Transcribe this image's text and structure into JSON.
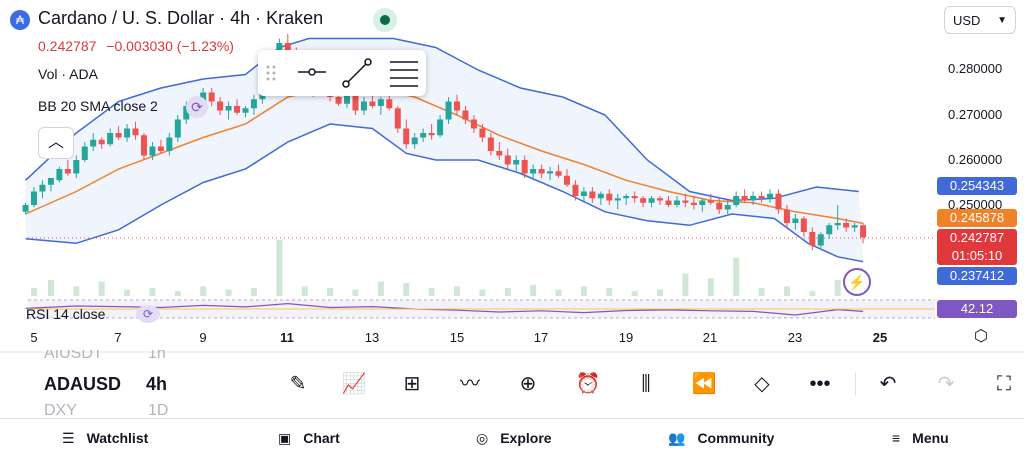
{
  "header": {
    "title": "Cardano / U. S. Dollar · 4h · Kraken",
    "logo_glyph": "₳",
    "price": "0.242787",
    "change": "−0.003030 (−1.23%)",
    "volume_label": "Vol · ADA",
    "bb_label": "BB 20 SMA close 2"
  },
  "currency": {
    "selected": "USD"
  },
  "y_axis": {
    "ticks": [
      "0.280000",
      "0.270000",
      "0.260000",
      "0.250000"
    ],
    "tags": {
      "upper_band": "0.254343",
      "basis": "0.245878",
      "price": "0.242787",
      "countdown": "01:05:10",
      "lower_band": "0.237412",
      "rsi": "42.12"
    }
  },
  "x_axis": {
    "ticks": [
      "5",
      "7",
      "9",
      "11",
      "13",
      "15",
      "17",
      "19",
      "21",
      "23",
      "25"
    ]
  },
  "rsi": {
    "label": "RSI 14 close"
  },
  "toolbar": {
    "symbols": {
      "prev": "AIUSDT",
      "current": "ADAUSD",
      "next": "DXY"
    },
    "intervals": {
      "prev": "1h",
      "current": "4h",
      "next": "1D"
    }
  },
  "nav": {
    "watchlist": "Watchlist",
    "chart": "Chart",
    "explore": "Explore",
    "community": "Community",
    "menu": "Menu"
  },
  "colors": {
    "up": "#26a69a",
    "down": "#ef5350",
    "band": "#3f6ad8",
    "basis": "#f0822a",
    "price_tag": "#e0383b",
    "rsi": "#7e57c2"
  },
  "chart_data": {
    "type": "candlestick",
    "symbol": "ADAUSD",
    "interval": "4h",
    "ylim": [
      0.234,
      0.288
    ],
    "x_range_days": [
      5,
      25
    ],
    "candles": [
      [
        4.8,
        0.2485,
        0.2505,
        0.248,
        0.25
      ],
      [
        5.0,
        0.25,
        0.254,
        0.2495,
        0.253
      ],
      [
        5.2,
        0.253,
        0.2555,
        0.2515,
        0.2545
      ],
      [
        5.4,
        0.2545,
        0.256,
        0.253,
        0.256
      ],
      [
        5.6,
        0.2555,
        0.2585,
        0.255,
        0.258
      ],
      [
        5.8,
        0.258,
        0.26,
        0.2565,
        0.257
      ],
      [
        6.0,
        0.257,
        0.261,
        0.256,
        0.26
      ],
      [
        6.2,
        0.26,
        0.264,
        0.2595,
        0.263
      ],
      [
        6.4,
        0.263,
        0.266,
        0.262,
        0.2645
      ],
      [
        6.6,
        0.2645,
        0.265,
        0.2625,
        0.2635
      ],
      [
        6.8,
        0.2635,
        0.267,
        0.263,
        0.266
      ],
      [
        7.0,
        0.266,
        0.2675,
        0.2645,
        0.265
      ],
      [
        7.2,
        0.265,
        0.268,
        0.264,
        0.267
      ],
      [
        7.4,
        0.267,
        0.2685,
        0.2645,
        0.2655
      ],
      [
        7.6,
        0.2655,
        0.266,
        0.26,
        0.261
      ],
      [
        7.8,
        0.261,
        0.264,
        0.26,
        0.263
      ],
      [
        8.0,
        0.263,
        0.2645,
        0.2615,
        0.262
      ],
      [
        8.2,
        0.262,
        0.266,
        0.261,
        0.265
      ],
      [
        8.4,
        0.265,
        0.27,
        0.264,
        0.269
      ],
      [
        8.6,
        0.269,
        0.273,
        0.268,
        0.272
      ],
      [
        8.8,
        0.272,
        0.274,
        0.27,
        0.271
      ],
      [
        9.0,
        0.271,
        0.276,
        0.2705,
        0.275
      ],
      [
        9.2,
        0.275,
        0.276,
        0.272,
        0.273
      ],
      [
        9.4,
        0.273,
        0.274,
        0.27,
        0.271
      ],
      [
        9.6,
        0.271,
        0.273,
        0.269,
        0.272
      ],
      [
        9.8,
        0.272,
        0.2735,
        0.27,
        0.2705
      ],
      [
        10.0,
        0.2705,
        0.272,
        0.2695,
        0.2715
      ],
      [
        10.2,
        0.2715,
        0.2745,
        0.27,
        0.2735
      ],
      [
        10.4,
        0.2735,
        0.278,
        0.2725,
        0.277
      ],
      [
        10.6,
        0.277,
        0.281,
        0.276,
        0.28
      ],
      [
        10.8,
        0.28,
        0.287,
        0.279,
        0.286
      ],
      [
        11.0,
        0.286,
        0.288,
        0.283,
        0.284
      ],
      [
        11.2,
        0.284,
        0.285,
        0.278,
        0.279
      ],
      [
        11.4,
        0.279,
        0.28,
        0.275,
        0.276
      ],
      [
        11.6,
        0.276,
        0.278,
        0.274,
        0.277
      ],
      [
        11.8,
        0.277,
        0.279,
        0.2745,
        0.275
      ],
      [
        12.0,
        0.275,
        0.276,
        0.273,
        0.274
      ],
      [
        12.2,
        0.274,
        0.276,
        0.272,
        0.2725
      ],
      [
        12.4,
        0.2725,
        0.276,
        0.2715,
        0.2745
      ],
      [
        12.6,
        0.2745,
        0.2755,
        0.27,
        0.271
      ],
      [
        12.8,
        0.271,
        0.274,
        0.27,
        0.273
      ],
      [
        13.0,
        0.273,
        0.275,
        0.2715,
        0.272
      ],
      [
        13.2,
        0.272,
        0.274,
        0.27,
        0.2735
      ],
      [
        13.4,
        0.2735,
        0.275,
        0.271,
        0.2715
      ],
      [
        13.6,
        0.2715,
        0.272,
        0.266,
        0.267
      ],
      [
        13.8,
        0.267,
        0.269,
        0.2625,
        0.2635
      ],
      [
        14.0,
        0.2635,
        0.266,
        0.2625,
        0.265
      ],
      [
        14.2,
        0.265,
        0.267,
        0.264,
        0.266
      ],
      [
        14.4,
        0.266,
        0.268,
        0.2645,
        0.2655
      ],
      [
        14.6,
        0.2655,
        0.27,
        0.265,
        0.269
      ],
      [
        14.8,
        0.269,
        0.274,
        0.268,
        0.273
      ],
      [
        15.0,
        0.273,
        0.2745,
        0.27,
        0.271
      ],
      [
        15.2,
        0.271,
        0.272,
        0.268,
        0.269
      ],
      [
        15.4,
        0.269,
        0.27,
        0.266,
        0.267
      ],
      [
        15.6,
        0.267,
        0.268,
        0.264,
        0.265
      ],
      [
        15.8,
        0.265,
        0.266,
        0.261,
        0.262
      ],
      [
        16.0,
        0.262,
        0.264,
        0.26,
        0.261
      ],
      [
        16.2,
        0.261,
        0.2625,
        0.258,
        0.259
      ],
      [
        16.4,
        0.259,
        0.261,
        0.2575,
        0.26
      ],
      [
        16.6,
        0.26,
        0.261,
        0.256,
        0.257
      ],
      [
        16.8,
        0.257,
        0.259,
        0.2555,
        0.258
      ],
      [
        17.0,
        0.258,
        0.259,
        0.256,
        0.257
      ],
      [
        17.2,
        0.257,
        0.2585,
        0.2555,
        0.2575
      ],
      [
        17.4,
        0.2575,
        0.259,
        0.256,
        0.2565
      ],
      [
        17.6,
        0.2565,
        0.258,
        0.254,
        0.2545
      ],
      [
        17.8,
        0.2545,
        0.2555,
        0.251,
        0.252
      ],
      [
        18.0,
        0.252,
        0.254,
        0.2505,
        0.253
      ],
      [
        18.2,
        0.253,
        0.254,
        0.2505,
        0.2515
      ],
      [
        18.4,
        0.2515,
        0.253,
        0.25,
        0.2525
      ],
      [
        18.6,
        0.2525,
        0.2535,
        0.25,
        0.251
      ],
      [
        18.8,
        0.251,
        0.2525,
        0.249,
        0.2515
      ],
      [
        19.0,
        0.2515,
        0.2525,
        0.25,
        0.252
      ],
      [
        19.2,
        0.252,
        0.253,
        0.2505,
        0.2515
      ],
      [
        19.4,
        0.2515,
        0.252,
        0.2495,
        0.2505
      ],
      [
        19.6,
        0.2505,
        0.252,
        0.2495,
        0.2515
      ],
      [
        19.8,
        0.2515,
        0.252,
        0.25,
        0.251
      ],
      [
        20.0,
        0.251,
        0.252,
        0.2495,
        0.25
      ],
      [
        20.2,
        0.25,
        0.252,
        0.2495,
        0.251
      ],
      [
        20.4,
        0.251,
        0.2525,
        0.2495,
        0.2505
      ],
      [
        20.6,
        0.2505,
        0.252,
        0.249,
        0.25
      ],
      [
        20.8,
        0.25,
        0.2515,
        0.2485,
        0.251
      ],
      [
        21.0,
        0.251,
        0.2525,
        0.25,
        0.2505
      ],
      [
        21.2,
        0.2505,
        0.2515,
        0.248,
        0.249
      ],
      [
        21.4,
        0.249,
        0.251,
        0.248,
        0.25
      ],
      [
        21.6,
        0.25,
        0.253,
        0.2495,
        0.252
      ],
      [
        21.8,
        0.252,
        0.2535,
        0.2505,
        0.251
      ],
      [
        22.0,
        0.251,
        0.253,
        0.25,
        0.252
      ],
      [
        22.2,
        0.252,
        0.253,
        0.2505,
        0.2515
      ],
      [
        22.4,
        0.2515,
        0.2535,
        0.2505,
        0.2525
      ],
      [
        22.6,
        0.2525,
        0.2535,
        0.248,
        0.249
      ],
      [
        22.8,
        0.249,
        0.25,
        0.245,
        0.246
      ],
      [
        23.0,
        0.246,
        0.248,
        0.2445,
        0.247
      ],
      [
        23.2,
        0.247,
        0.2475,
        0.243,
        0.244
      ],
      [
        23.4,
        0.244,
        0.245,
        0.24,
        0.241
      ],
      [
        23.6,
        0.241,
        0.244,
        0.2405,
        0.2435
      ],
      [
        23.8,
        0.2435,
        0.246,
        0.2425,
        0.2455
      ],
      [
        24.0,
        0.2455,
        0.25,
        0.2445,
        0.246
      ],
      [
        24.2,
        0.246,
        0.247,
        0.244,
        0.245
      ],
      [
        24.4,
        0.245,
        0.246,
        0.244,
        0.2455
      ],
      [
        24.6,
        0.2455,
        0.246,
        0.2415,
        0.2428
      ]
    ],
    "bb_upper": [
      [
        4.8,
        0.2555
      ],
      [
        6,
        0.266
      ],
      [
        7,
        0.273
      ],
      [
        8,
        0.276
      ],
      [
        9,
        0.278
      ],
      [
        10,
        0.279
      ],
      [
        10.8,
        0.285
      ],
      [
        11.5,
        0.287
      ],
      [
        12.5,
        0.287
      ],
      [
        13.5,
        0.287
      ],
      [
        14.5,
        0.285
      ],
      [
        15.5,
        0.28
      ],
      [
        16.5,
        0.276
      ],
      [
        17.5,
        0.274
      ],
      [
        18.5,
        0.27
      ],
      [
        19.5,
        0.26
      ],
      [
        20.5,
        0.253
      ],
      [
        21.5,
        0.251
      ],
      [
        22.5,
        0.2515
      ],
      [
        23.5,
        0.254
      ],
      [
        24.5,
        0.253
      ]
    ],
    "bb_basis": [
      [
        4.8,
        0.248
      ],
      [
        6,
        0.253
      ],
      [
        7,
        0.258
      ],
      [
        8,
        0.2615
      ],
      [
        9,
        0.265
      ],
      [
        10,
        0.268
      ],
      [
        11,
        0.274
      ],
      [
        12,
        0.276
      ],
      [
        13,
        0.276
      ],
      [
        14,
        0.274
      ],
      [
        15,
        0.27
      ],
      [
        16,
        0.2655
      ],
      [
        17,
        0.262
      ],
      [
        18,
        0.259
      ],
      [
        19,
        0.2555
      ],
      [
        20,
        0.253
      ],
      [
        21,
        0.251
      ],
      [
        22,
        0.2505
      ],
      [
        23,
        0.2485
      ],
      [
        24,
        0.247
      ],
      [
        24.6,
        0.2459
      ]
    ],
    "bb_lower": [
      [
        4.8,
        0.2425
      ],
      [
        6,
        0.2415
      ],
      [
        7,
        0.2445
      ],
      [
        8,
        0.25
      ],
      [
        9,
        0.255
      ],
      [
        10,
        0.258
      ],
      [
        11,
        0.264
      ],
      [
        12,
        0.268
      ],
      [
        13,
        0.267
      ],
      [
        13.8,
        0.2615
      ],
      [
        14.5,
        0.26
      ],
      [
        15.5,
        0.26
      ],
      [
        16.5,
        0.257
      ],
      [
        17.5,
        0.253
      ],
      [
        18.5,
        0.2485
      ],
      [
        19.5,
        0.2465
      ],
      [
        20.5,
        0.2455
      ],
      [
        21.5,
        0.248
      ],
      [
        22.5,
        0.247
      ],
      [
        23.3,
        0.2415
      ],
      [
        24,
        0.2385
      ],
      [
        24.6,
        0.2374
      ]
    ],
    "volume": [
      [
        5.0,
        0.1
      ],
      [
        5.4,
        0.2
      ],
      [
        6.0,
        0.12
      ],
      [
        6.6,
        0.18
      ],
      [
        7.2,
        0.08
      ],
      [
        7.8,
        0.1
      ],
      [
        8.4,
        0.06
      ],
      [
        9.0,
        0.12
      ],
      [
        9.6,
        0.08
      ],
      [
        10.2,
        0.1
      ],
      [
        10.8,
        0.7
      ],
      [
        11.4,
        0.12
      ],
      [
        12.0,
        0.1
      ],
      [
        12.6,
        0.08
      ],
      [
        13.2,
        0.18
      ],
      [
        13.8,
        0.16
      ],
      [
        14.4,
        0.1
      ],
      [
        15.0,
        0.12
      ],
      [
        15.6,
        0.08
      ],
      [
        16.2,
        0.1
      ],
      [
        16.8,
        0.14
      ],
      [
        17.4,
        0.08
      ],
      [
        18.0,
        0.12
      ],
      [
        18.6,
        0.1
      ],
      [
        19.2,
        0.06
      ],
      [
        19.8,
        0.08
      ],
      [
        20.4,
        0.28
      ],
      [
        21.0,
        0.22
      ],
      [
        21.6,
        0.48
      ],
      [
        22.2,
        0.1
      ],
      [
        22.8,
        0.12
      ],
      [
        23.4,
        0.06
      ],
      [
        24.0,
        0.2
      ]
    ],
    "rsi": [
      [
        4.8,
        52
      ],
      [
        6,
        60
      ],
      [
        7,
        58
      ],
      [
        8,
        55
      ],
      [
        9,
        62
      ],
      [
        10,
        57
      ],
      [
        11,
        68
      ],
      [
        12,
        55
      ],
      [
        13,
        58
      ],
      [
        14,
        50
      ],
      [
        15,
        46
      ],
      [
        16,
        40
      ],
      [
        17,
        44
      ],
      [
        18,
        38
      ],
      [
        19,
        45
      ],
      [
        20,
        47
      ],
      [
        21,
        44
      ],
      [
        22,
        42
      ],
      [
        23,
        30
      ],
      [
        24,
        48
      ],
      [
        24.6,
        42.12
      ]
    ]
  }
}
